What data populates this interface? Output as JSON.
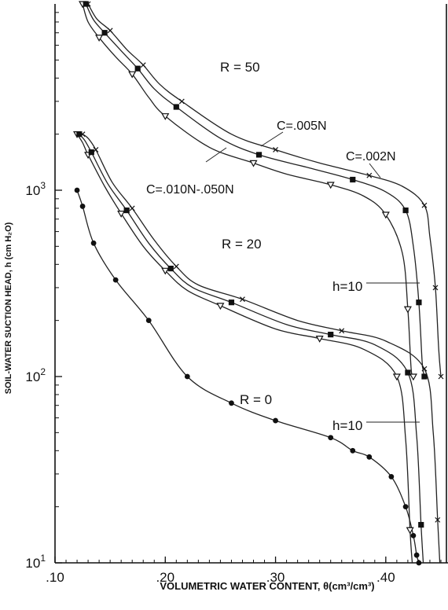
{
  "chart_data": {
    "type": "line",
    "xlabel": "VOLUMETRIC WATER CONTENT, θ(cm³/cm³)",
    "ylabel": "SOIL-WATER SUCTION HEAD, h (cm H₂O)",
    "xlim": [
      0.1,
      0.455
    ],
    "ylim": [
      10,
      10000
    ],
    "yscale": "log",
    "x_ticks": [
      {
        "value": 0.1,
        "label": ".10"
      },
      {
        "value": 0.2,
        "label": ".20"
      },
      {
        "value": 0.3,
        "label": ".30"
      },
      {
        "value": 0.4,
        "label": ".40"
      }
    ],
    "y_ticks": [
      {
        "value": 10,
        "base": "10",
        "exp": "1"
      },
      {
        "value": 100,
        "base": "10",
        "exp": "2"
      },
      {
        "value": 1000,
        "base": "10",
        "exp": "3"
      }
    ],
    "grid": false,
    "groups": [
      {
        "label": "R = 50",
        "annotations": [
          "C=.005N",
          "C=.002N",
          "C=.010N-.050N",
          "h=10"
        ],
        "series": [
          {
            "marker": "triangle",
            "x": [
              0.125,
              0.13,
              0.14,
              0.155,
              0.17,
              0.185,
              0.2,
              0.24,
              0.28,
              0.31,
              0.35,
              0.38,
              0.4,
              0.415,
              0.42,
              0.423,
              0.425
            ],
            "y": [
              10000,
              8000,
              6600,
              5200,
              4200,
              3150,
              2500,
              1700,
              1400,
              1220,
              1070,
              930,
              740,
              460,
              230,
              110,
              100
            ]
          },
          {
            "marker": "square",
            "x": [
              0.128,
              0.135,
              0.145,
              0.16,
              0.175,
              0.19,
              0.21,
              0.25,
              0.285,
              0.33,
              0.37,
              0.4,
              0.418,
              0.425,
              0.43,
              0.433,
              0.435
            ],
            "y": [
              10000,
              8200,
              7000,
              5600,
              4500,
              3500,
              2800,
              1900,
              1550,
              1320,
              1140,
              980,
              780,
              500,
              250,
              120,
              100
            ]
          },
          {
            "marker": "x",
            "x": [
              0.13,
              0.138,
              0.15,
              0.165,
              0.18,
              0.195,
              0.215,
              0.26,
              0.3,
              0.34,
              0.385,
              0.415,
              0.435,
              0.44,
              0.445,
              0.448,
              0.45
            ],
            "y": [
              10000,
              8300,
              7200,
              5700,
              4700,
              3700,
              3000,
              2000,
              1650,
              1400,
              1200,
              1050,
              830,
              560,
              300,
              140,
              100
            ]
          }
        ]
      },
      {
        "label": "R = 20",
        "annotations": [
          "h=10"
        ],
        "series": [
          {
            "marker": "triangle",
            "x": [
              0.12,
              0.125,
              0.13,
              0.145,
              0.16,
              0.18,
              0.2,
              0.22,
              0.25,
              0.3,
              0.34,
              0.38,
              0.41,
              0.418,
              0.422,
              0.424
            ],
            "y": [
              2000,
              1800,
              1550,
              1050,
              750,
              500,
              370,
              290,
              240,
              180,
              160,
              140,
              100,
              46,
              15,
              10
            ]
          },
          {
            "marker": "square",
            "x": [
              0.122,
              0.127,
              0.133,
              0.148,
              0.165,
              0.185,
              0.205,
              0.225,
              0.26,
              0.31,
              0.35,
              0.39,
              0.42,
              0.428,
              0.432,
              0.434
            ],
            "y": [
              2000,
              1850,
              1600,
              1080,
              780,
              520,
              380,
              300,
              250,
              190,
              168,
              148,
              105,
              48,
              16,
              10
            ]
          },
          {
            "marker": "x",
            "x": [
              0.125,
              0.13,
              0.137,
              0.152,
              0.17,
              0.19,
              0.21,
              0.23,
              0.27,
              0.32,
              0.36,
              0.4,
              0.435,
              0.443,
              0.447,
              0.449
            ],
            "y": [
              2000,
              1900,
              1650,
              1100,
              800,
              540,
              390,
              310,
              260,
              200,
              176,
              155,
              110,
              50,
              17,
              10
            ]
          }
        ]
      },
      {
        "label": "R = 0",
        "annotations": [],
        "series": [
          {
            "marker": "dot",
            "x": [
              0.12,
              0.125,
              0.135,
              0.155,
              0.185,
              0.22,
              0.26,
              0.3,
              0.35,
              0.37,
              0.385,
              0.405,
              0.418,
              0.425,
              0.428,
              0.43
            ],
            "y": [
              1000,
              820,
              520,
              330,
              200,
              100,
              72,
              58,
              47,
              40,
              37,
              29,
              20,
              14,
              11,
              10
            ]
          }
        ]
      }
    ]
  }
}
